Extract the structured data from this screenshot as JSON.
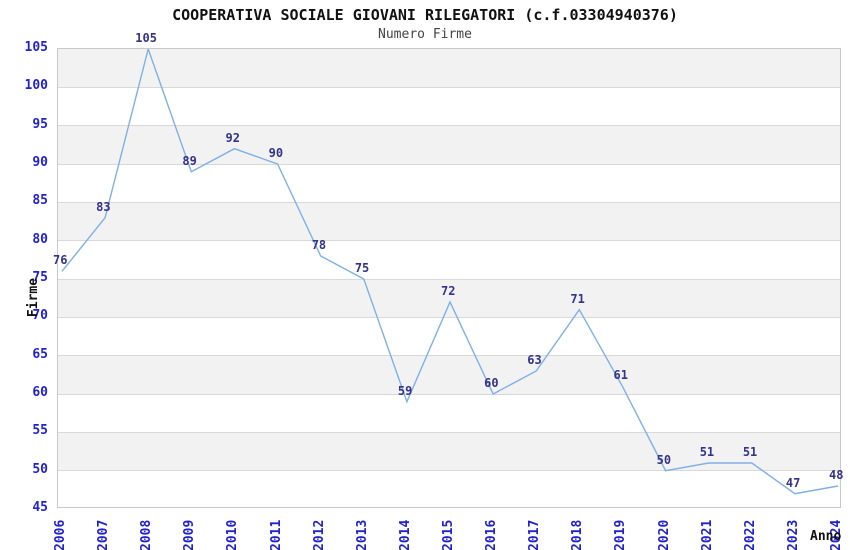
{
  "chart_data": {
    "type": "line",
    "title": "COOPERATIVA SOCIALE GIOVANI RILEGATORI (c.f.03304940376)",
    "subtitle": "Numero Firme",
    "xlabel": "Anno",
    "ylabel": "Firme",
    "categories": [
      "2006",
      "2007",
      "2008",
      "2009",
      "2010",
      "2011",
      "2012",
      "2013",
      "2014",
      "2015",
      "2016",
      "2017",
      "2018",
      "2019",
      "2020",
      "2021",
      "2022",
      "2023",
      "2024"
    ],
    "series": [
      {
        "name": "Numero Firme",
        "values": [
          76,
          83,
          105,
          89,
          92,
          90,
          78,
          75,
          59,
          72,
          60,
          63,
          71,
          61,
          50,
          51,
          51,
          47,
          48
        ]
      }
    ],
    "ylim": [
      45,
      105
    ],
    "ytick_step": 5,
    "grid": "horizontal-bands-alternating",
    "legend": "none",
    "point_labels_shown": true,
    "colors": {
      "line": "#7fb0e6",
      "point_label": "#333388",
      "tick_label": "#2222cc",
      "band": "#f2f2f2",
      "gridline": "#d9d9d9",
      "plot_border": "#c9c9c9",
      "title": "#111111",
      "subtitle": "#444444",
      "background": "#ffffff"
    }
  }
}
